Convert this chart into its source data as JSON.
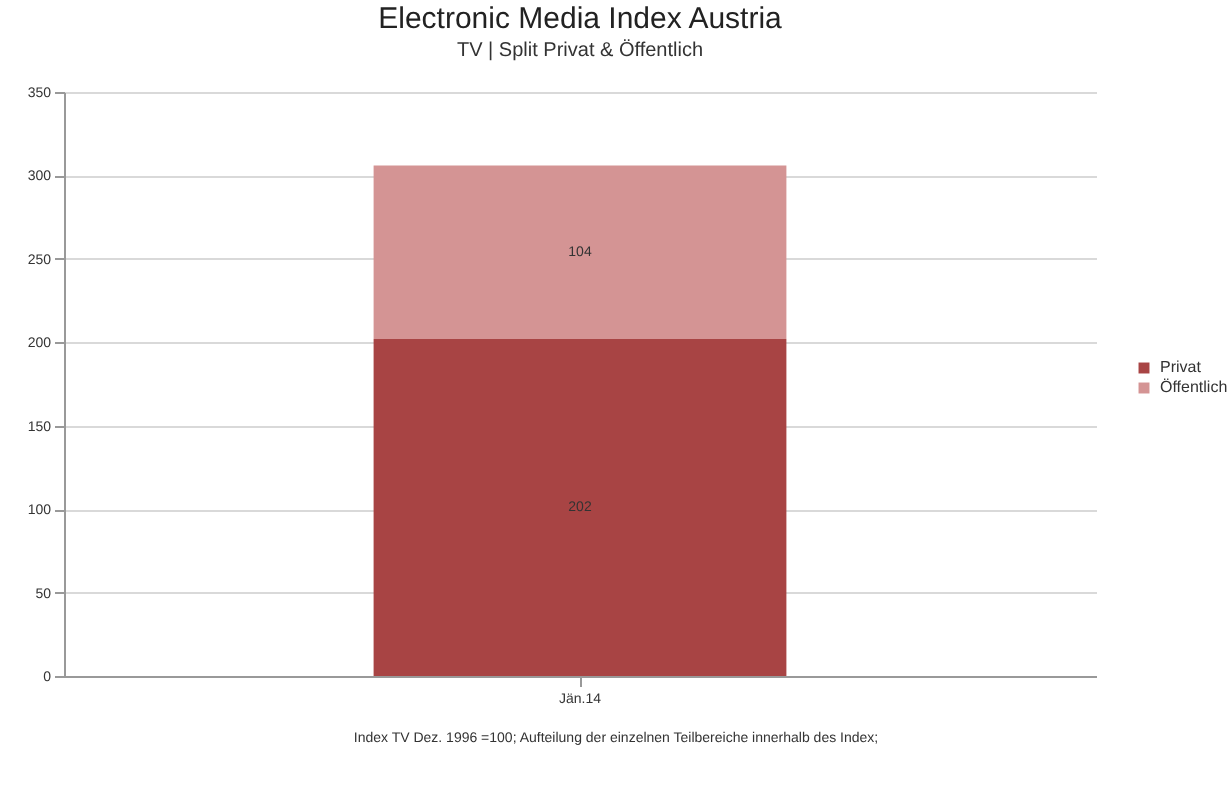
{
  "chart_data": {
    "type": "bar",
    "title": "Electronic Media Index Austria",
    "subtitle": "TV | Split Privat & Öffentlich",
    "categories": [
      "Jän.14"
    ],
    "stacked": true,
    "series": [
      {
        "name": "Privat",
        "color": "#a84444",
        "values": [
          202
        ]
      },
      {
        "name": "Öffentlich",
        "color": "#d49494",
        "values": [
          104
        ]
      }
    ],
    "ylim": [
      0,
      350
    ],
    "yticks": [
      0,
      50,
      100,
      150,
      200,
      250,
      300,
      350
    ],
    "grid": "y",
    "legend": "right",
    "data_labels": true,
    "annotations": [
      "Index TV Dez. 1996 =100; Aufteilung der einzelnen Teilbereiche innerhalb des Index;"
    ]
  }
}
